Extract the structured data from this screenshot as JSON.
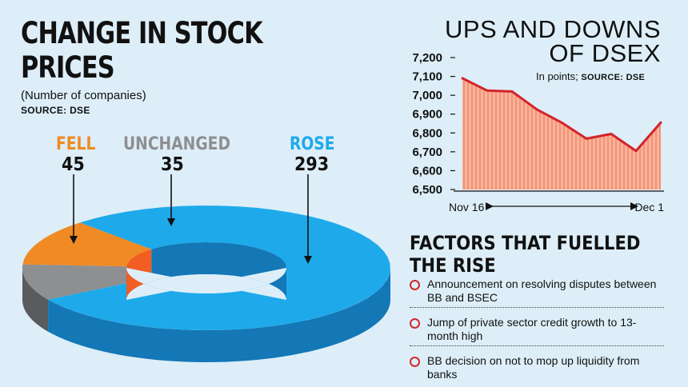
{
  "left_title": "CHANGE IN STOCK PRICES",
  "left_subtitle": "(Number of companies)",
  "left_source": "SOURCE: DSE",
  "colors": {
    "fell": "#f08a24",
    "unchanged": "#8e8f91",
    "rose": "#1eaaea"
  },
  "right_title_line1": "UPS AND DOWNS",
  "right_title_line2": "OF DSEX",
  "right_units": "In points;",
  "right_source": "SOURCE: DSE",
  "factors_title": "FACTORS THAT FUELLED THE RISE",
  "factors": [
    "Announcement on resolving disputes between BB and BSEC",
    "Jump of private sector credit growth to 13-month high",
    "BB decision on not to mop up liquidity from banks"
  ],
  "chart_data": [
    {
      "type": "pie",
      "title": "CHANGE IN STOCK PRICES",
      "subtitle": "(Number of companies)",
      "categories": [
        "FELL",
        "UNCHANGED",
        "ROSE"
      ],
      "values": [
        45,
        35,
        293
      ],
      "donut": true
    },
    {
      "type": "area",
      "title": "UPS AND DOWNS OF DSEX",
      "ylabel": "In points",
      "yticks": [
        "7,200",
        "7,100",
        "7,000",
        "6,900",
        "6,800",
        "6,700",
        "6,600",
        "6,500"
      ],
      "ylim": [
        6500,
        7200
      ],
      "x_start_label": "Nov 16",
      "x_end_label": "Dec 1",
      "values": [
        7090,
        7025,
        7020,
        6925,
        6855,
        6770,
        6795,
        6705,
        6855
      ]
    }
  ]
}
